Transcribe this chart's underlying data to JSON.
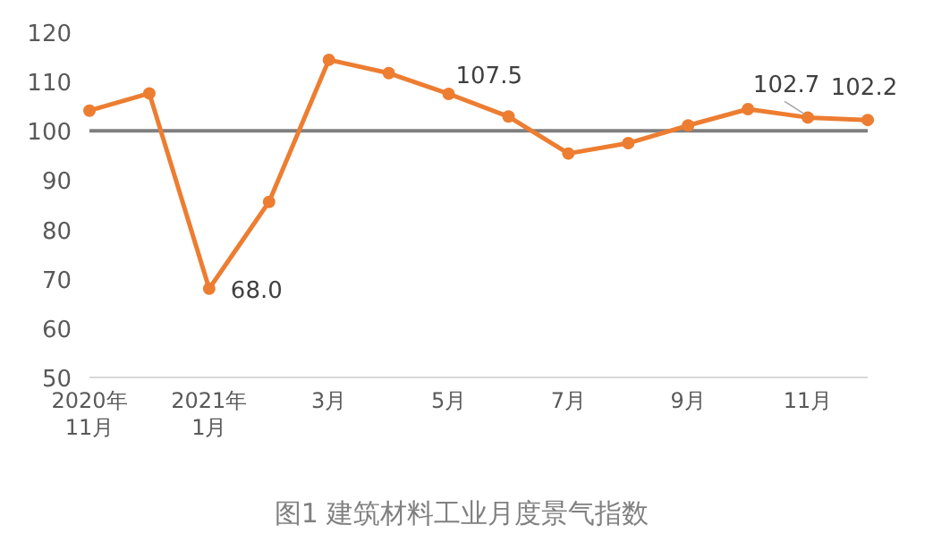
{
  "chart_data": {
    "type": "line",
    "title": "图1  建筑材料工业月度景气指数",
    "categories": [
      "2020年\n11月",
      null,
      "2021年\n1月",
      null,
      "3月",
      null,
      "5月",
      null,
      "7月",
      null,
      "9月",
      null,
      "11月",
      null
    ],
    "values": [
      104.1,
      107.6,
      68.0,
      85.6,
      114.4,
      111.7,
      107.5,
      102.9,
      95.4,
      97.5,
      101.1,
      104.4,
      102.7,
      102.2
    ],
    "value_labels": [
      null,
      null,
      "68.0",
      null,
      null,
      null,
      "107.5",
      null,
      null,
      null,
      null,
      null,
      "102.7",
      "102.2"
    ],
    "color": "#ed7d31",
    "marker": "circle",
    "ylim": [
      50,
      120
    ],
    "yticks": [
      50,
      60,
      70,
      80,
      90,
      100,
      110,
      120
    ],
    "ref_lines": [
      {
        "axis": "y",
        "value": 100,
        "color": "#7f7f7f"
      }
    ]
  }
}
